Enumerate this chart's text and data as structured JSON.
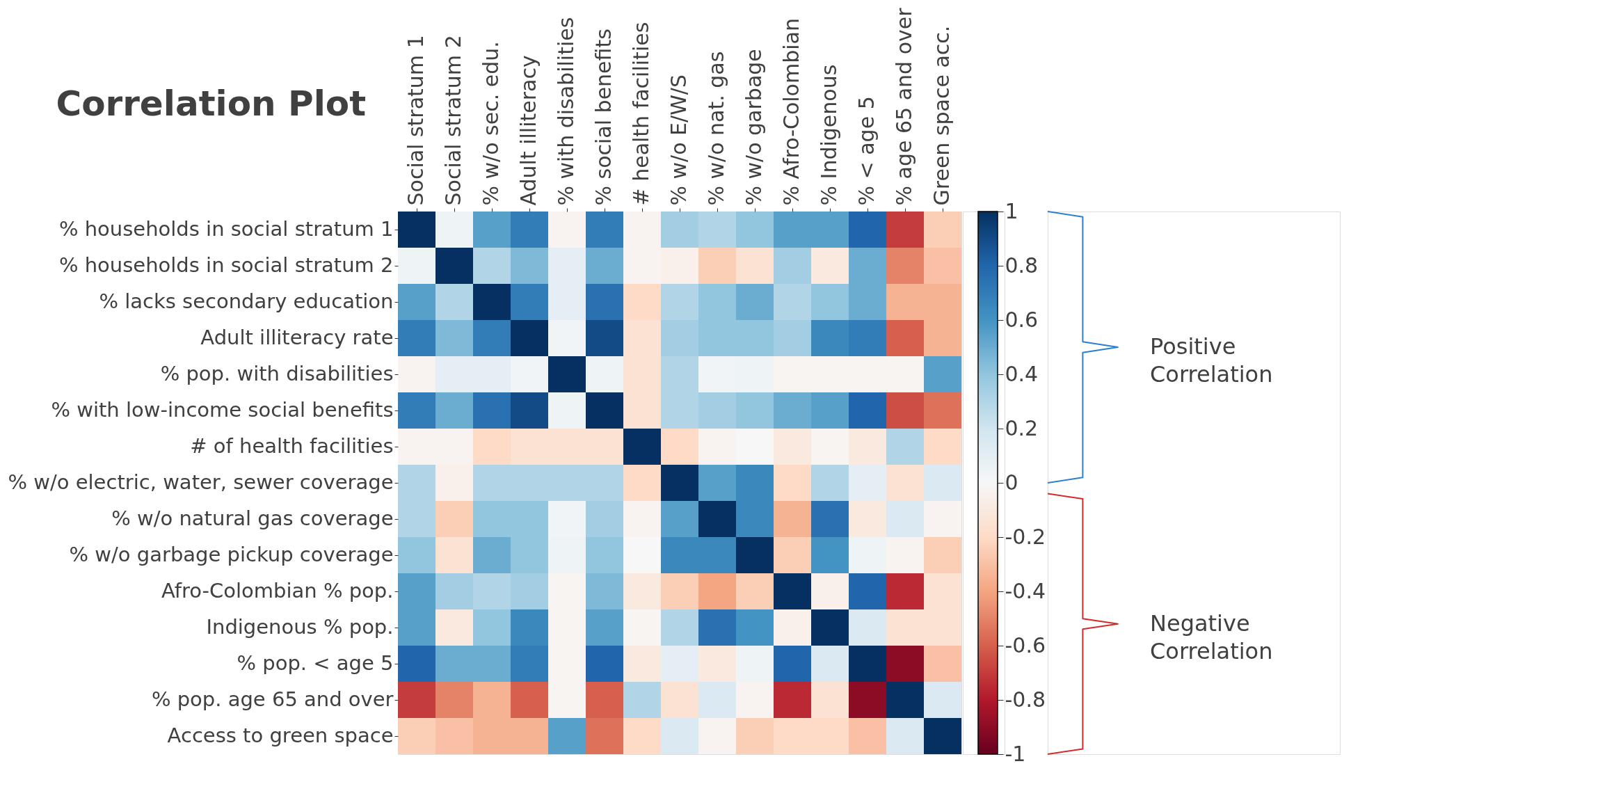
{
  "chart_data": {
    "type": "heatmap",
    "title": "Correlation Plot",
    "categories": [
      "Social stratum 1",
      "Social stratum 2",
      "% w/o sec. edu.",
      "Adult illiteracy",
      "% with disabilities",
      "% social benefits",
      "# health facilities",
      "% w/o E/W/S",
      "% w/o nat. gas",
      "% w/o garbage",
      "% Afro-Colombian",
      "% Indigenous",
      "% < age 5",
      "% age 65 and over",
      "Green space acc."
    ],
    "y_categories": [
      "% households in social stratum 1",
      "% households in social stratum 2",
      "% lacks secondary education",
      "Adult illiteracy rate",
      "% pop. with disabilities",
      "% with low-income social benefits",
      "# of health facilities",
      "% w/o electric, water, sewer coverage",
      "% w/o natural gas coverage",
      "% w/o garbage pickup coverage",
      "Afro-Colombian % pop.",
      "Indigenous % pop.",
      "% pop. < age 5",
      "% pop. age 65 and over",
      "Access to green space"
    ],
    "cells": [
      [
        1,
        0.05,
        0.55,
        0.7,
        -0.03,
        0.7,
        -0.03,
        0.35,
        0.3,
        0.4,
        0.55,
        0.55,
        0.8,
        -0.7,
        -0.25
      ],
      [
        0.05,
        1,
        0.3,
        0.45,
        0.1,
        0.5,
        -0.03,
        -0.05,
        -0.25,
        -0.15,
        0.35,
        -0.1,
        0.5,
        -0.5,
        -0.3
      ],
      [
        0.55,
        0.3,
        1,
        0.7,
        0.1,
        0.75,
        -0.2,
        0.3,
        0.4,
        0.5,
        0.3,
        0.4,
        0.5,
        -0.35,
        -0.35
      ],
      [
        0.7,
        0.45,
        0.7,
        1,
        0.03,
        0.9,
        -0.15,
        0.35,
        0.4,
        0.4,
        0.35,
        0.65,
        0.7,
        -0.6,
        -0.35
      ],
      [
        -0.03,
        0.1,
        0.1,
        0.03,
        1,
        0.05,
        -0.15,
        0.3,
        0.03,
        0.05,
        -0.02,
        -0.02,
        -0.02,
        -0.02,
        0.55
      ],
      [
        0.7,
        0.5,
        0.75,
        0.9,
        0.05,
        1,
        -0.15,
        0.3,
        0.35,
        0.4,
        0.5,
        0.55,
        0.8,
        -0.65,
        -0.55
      ],
      [
        -0.03,
        -0.03,
        -0.2,
        -0.15,
        -0.15,
        -0.15,
        1,
        -0.2,
        -0.03,
        0,
        -0.1,
        -0.02,
        -0.1,
        0.3,
        -0.2
      ],
      [
        0.3,
        -0.05,
        0.3,
        0.3,
        0.3,
        0.3,
        -0.2,
        1,
        0.55,
        0.65,
        -0.2,
        0.3,
        0.1,
        -0.15,
        0.15
      ],
      [
        0.3,
        -0.25,
        0.4,
        0.4,
        0.03,
        0.35,
        -0.03,
        0.55,
        1,
        0.65,
        -0.35,
        0.75,
        -0.1,
        0.15,
        -0.03
      ],
      [
        0.4,
        -0.15,
        0.5,
        0.4,
        0.05,
        0.4,
        0,
        0.65,
        0.65,
        1,
        -0.25,
        0.6,
        0.05,
        -0.03,
        -0.25
      ],
      [
        0.55,
        0.35,
        0.3,
        0.35,
        -0.02,
        0.45,
        -0.1,
        -0.25,
        -0.4,
        -0.25,
        1,
        -0.05,
        0.8,
        -0.75,
        -0.15
      ],
      [
        0.55,
        -0.1,
        0.4,
        0.65,
        -0.02,
        0.55,
        -0.02,
        0.3,
        0.75,
        0.6,
        -0.05,
        1,
        0.15,
        -0.15,
        -0.15
      ],
      [
        0.8,
        0.5,
        0.5,
        0.7,
        -0.02,
        0.8,
        -0.1,
        0.1,
        -0.1,
        0.05,
        0.8,
        0.15,
        1,
        -0.9,
        -0.3
      ],
      [
        -0.7,
        -0.5,
        -0.35,
        -0.6,
        -0.02,
        -0.6,
        0.3,
        -0.15,
        0.15,
        -0.03,
        -0.75,
        -0.15,
        -0.9,
        1,
        0.15
      ],
      [
        -0.25,
        -0.3,
        -0.35,
        -0.35,
        0.55,
        -0.55,
        -0.2,
        0.15,
        -0.03,
        -0.25,
        -0.2,
        -0.2,
        -0.3,
        0.15,
        1
      ]
    ],
    "clim": [
      -1,
      1
    ],
    "cticks": [
      1,
      0.8,
      0.6,
      0.4,
      0.2,
      0,
      -0.2,
      -0.4,
      -0.6,
      -0.8,
      -1
    ],
    "annotations": [
      "Positive Correlation",
      "Negative Correlation"
    ]
  }
}
